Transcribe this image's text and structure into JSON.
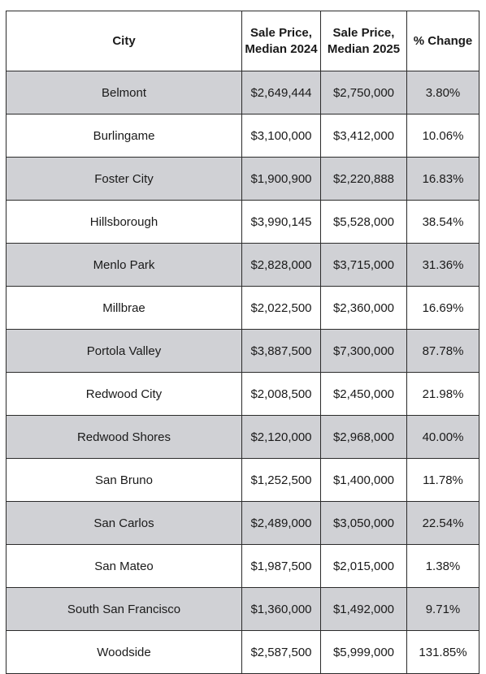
{
  "table": {
    "headers": {
      "city": "City",
      "price_2024": "Sale Price, Median 2024",
      "price_2025": "Sale Price, Median 2025",
      "change": "% Change"
    },
    "rows": [
      {
        "city": "Belmont",
        "price_2024": "$2,649,444",
        "price_2025": "$2,750,000",
        "change": "3.80%"
      },
      {
        "city": "Burlingame",
        "price_2024": "$3,100,000",
        "price_2025": "$3,412,000",
        "change": "10.06%"
      },
      {
        "city": "Foster City",
        "price_2024": "$1,900,900",
        "price_2025": "$2,220,888",
        "change": "16.83%"
      },
      {
        "city": "Hillsborough",
        "price_2024": "$3,990,145",
        "price_2025": "$5,528,000",
        "change": "38.54%"
      },
      {
        "city": "Menlo Park",
        "price_2024": "$2,828,000",
        "price_2025": "$3,715,000",
        "change": "31.36%"
      },
      {
        "city": "Millbrae",
        "price_2024": "$2,022,500",
        "price_2025": "$2,360,000",
        "change": "16.69%"
      },
      {
        "city": "Portola Valley",
        "price_2024": "$3,887,500",
        "price_2025": "$7,300,000",
        "change": "87.78%"
      },
      {
        "city": "Redwood City",
        "price_2024": "$2,008,500",
        "price_2025": "$2,450,000",
        "change": "21.98%"
      },
      {
        "city": "Redwood Shores",
        "price_2024": "$2,120,000",
        "price_2025": "$2,968,000",
        "change": "40.00%"
      },
      {
        "city": "San Bruno",
        "price_2024": "$1,252,500",
        "price_2025": "$1,400,000",
        "change": "11.78%"
      },
      {
        "city": "San Carlos",
        "price_2024": "$2,489,000",
        "price_2025": "$3,050,000",
        "change": "22.54%"
      },
      {
        "city": "San Mateo",
        "price_2024": "$1,987,500",
        "price_2025": "$2,015,000",
        "change": "1.38%"
      },
      {
        "city": "South San Francisco",
        "price_2024": "$1,360,000",
        "price_2025": "$1,492,000",
        "change": "9.71%"
      },
      {
        "city": "Woodside",
        "price_2024": "$2,587,500",
        "price_2025": "$5,999,000",
        "change": "131.85%"
      }
    ]
  },
  "colors": {
    "shaded_row": "#d0d1d5",
    "plain_row": "#ffffff",
    "border": "#2b2b2b"
  }
}
